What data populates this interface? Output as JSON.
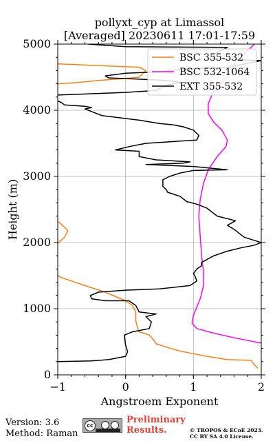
{
  "chart_data": {
    "type": "line",
    "title": "pollyxt_cyp at Limassol",
    "subtitle": "[Averaged] 20230611 17:01-17:59",
    "xlabel": "Angstroem Exponent",
    "ylabel": "Height (m)",
    "xlim": [
      -1,
      2
    ],
    "ylim": [
      0,
      5000
    ],
    "xticks": [
      "−1",
      "0",
      "1",
      "2"
    ],
    "yticks": [
      "0",
      "1000",
      "2000",
      "3000",
      "4000",
      "5000"
    ],
    "grid": true,
    "legend_position": "top-right",
    "series": [
      {
        "name": "BSC 355-532",
        "color": "#ff7f0e",
        "points": [
          [
            1.95,
            100
          ],
          [
            1.9,
            150
          ],
          [
            1.85,
            220
          ],
          [
            1.5,
            230
          ],
          [
            1.2,
            280
          ],
          [
            1.0,
            320
          ],
          [
            0.8,
            360
          ],
          [
            0.6,
            420
          ],
          [
            0.45,
            470
          ],
          [
            0.42,
            520
          ],
          [
            0.35,
            600
          ],
          [
            0.3,
            620
          ],
          [
            0.2,
            650
          ],
          [
            0.18,
            700
          ],
          [
            0.15,
            820
          ],
          [
            0.15,
            950
          ],
          [
            0.1,
            1050
          ],
          [
            0.0,
            1120
          ],
          [
            -0.3,
            1250
          ],
          [
            -0.6,
            1350
          ],
          [
            -0.8,
            1420
          ],
          [
            -0.97,
            1480
          ],
          [
            -1.0,
            1510
          ],
          [
            null,
            null
          ],
          [
            -1.0,
            1990
          ],
          [
            -0.9,
            2080
          ],
          [
            -0.85,
            2180
          ],
          [
            -0.95,
            2280
          ],
          [
            -1.0,
            2320
          ],
          [
            null,
            null
          ],
          [
            -1.0,
            4400
          ],
          [
            -0.7,
            4420
          ],
          [
            -0.4,
            4450
          ],
          [
            0.0,
            4480
          ],
          [
            0.2,
            4500
          ],
          [
            0.3,
            4600
          ],
          [
            0.2,
            4650
          ],
          [
            -0.5,
            4680
          ],
          [
            -1.0,
            4700
          ]
        ]
      },
      {
        "name": "BSC 532-1064",
        "color": "#ff00ff",
        "points": [
          [
            2.0,
            480
          ],
          [
            1.6,
            560
          ],
          [
            1.3,
            630
          ],
          [
            1.05,
            700
          ],
          [
            0.98,
            780
          ],
          [
            1.0,
            900
          ],
          [
            1.1,
            1150
          ],
          [
            1.15,
            1350
          ],
          [
            1.15,
            1550
          ],
          [
            1.12,
            1800
          ],
          [
            1.1,
            2100
          ],
          [
            1.08,
            2400
          ],
          [
            1.1,
            2650
          ],
          [
            1.15,
            2900
          ],
          [
            1.22,
            3100
          ],
          [
            1.35,
            3300
          ],
          [
            1.48,
            3450
          ],
          [
            1.5,
            3550
          ],
          [
            1.42,
            3700
          ],
          [
            1.3,
            3820
          ],
          [
            1.22,
            3950
          ],
          [
            1.22,
            4100
          ],
          [
            1.3,
            4300
          ],
          [
            1.45,
            4450
          ],
          [
            1.55,
            4580
          ],
          [
            1.6,
            4700
          ],
          [
            1.75,
            4850
          ],
          [
            1.85,
            4950
          ],
          [
            1.9,
            5000
          ]
        ]
      },
      {
        "name": "EXT 355-532",
        "color": "#000000",
        "points": [
          [
            -1.0,
            200
          ],
          [
            -0.5,
            210
          ],
          [
            -0.25,
            230
          ],
          [
            0.0,
            280
          ],
          [
            0.03,
            350
          ],
          [
            0.0,
            450
          ],
          [
            -0.02,
            600
          ],
          [
            0.1,
            650
          ],
          [
            0.35,
            700
          ],
          [
            0.38,
            800
          ],
          [
            0.3,
            880
          ],
          [
            0.45,
            920
          ],
          [
            0.2,
            950
          ],
          [
            0.15,
            1050
          ],
          [
            0.05,
            1120
          ],
          [
            -0.3,
            1120
          ],
          [
            -0.5,
            1150
          ],
          [
            -0.52,
            1200
          ],
          [
            -0.4,
            1250
          ],
          [
            0.0,
            1280
          ],
          [
            0.5,
            1300
          ],
          [
            0.95,
            1350
          ],
          [
            1.05,
            1420
          ],
          [
            1.02,
            1500
          ],
          [
            1.0,
            1530
          ],
          [
            1.05,
            1600
          ],
          [
            1.12,
            1650
          ],
          [
            1.12,
            1700
          ],
          [
            1.3,
            1800
          ],
          [
            1.5,
            1870
          ],
          [
            1.7,
            1920
          ],
          [
            1.9,
            1960
          ],
          [
            2.0,
            2000
          ],
          [
            1.75,
            2080
          ],
          [
            1.6,
            2200
          ],
          [
            1.5,
            2260
          ],
          [
            1.62,
            2330
          ],
          [
            1.35,
            2400
          ],
          [
            1.2,
            2520
          ],
          [
            1.05,
            2580
          ],
          [
            0.9,
            2620
          ],
          [
            0.8,
            2700
          ],
          [
            0.62,
            2760
          ],
          [
            0.6,
            2800
          ],
          [
            0.55,
            2850
          ],
          [
            0.55,
            2950
          ],
          [
            0.65,
            3000
          ],
          [
            0.8,
            3050
          ],
          [
            1.0,
            3090
          ],
          [
            1.5,
            3100
          ],
          [
            1.0,
            3150
          ],
          [
            0.3,
            3180
          ],
          [
            0.85,
            3200
          ],
          [
            0.95,
            3220
          ],
          [
            0.45,
            3250
          ],
          [
            0.2,
            3300
          ],
          [
            0.2,
            3380
          ],
          [
            -0.15,
            3400
          ],
          [
            0.05,
            3450
          ],
          [
            0.3,
            3500
          ],
          [
            0.6,
            3520
          ],
          [
            1.05,
            3550
          ],
          [
            1.08,
            3620
          ],
          [
            1.05,
            3650
          ],
          [
            1.0,
            3700
          ],
          [
            0.85,
            3750
          ],
          [
            0.7,
            3780
          ],
          [
            0.5,
            3800
          ],
          [
            0.2,
            3850
          ],
          [
            -0.35,
            3920
          ],
          [
            -0.5,
            3980
          ],
          [
            -0.6,
            4020
          ],
          [
            -0.5,
            4040
          ],
          [
            -0.6,
            4060
          ],
          [
            -0.9,
            4080
          ],
          [
            -0.95,
            4120
          ],
          [
            -1.0,
            4140
          ],
          [
            null,
            null
          ],
          [
            -1.0,
            4230
          ],
          [
            -0.5,
            4250
          ],
          [
            0.0,
            4270
          ],
          [
            0.45,
            4300
          ],
          [
            0.6,
            4380
          ],
          [
            0.8,
            4420
          ],
          [
            0.6,
            4450
          ],
          [
            0.2,
            4470
          ],
          [
            -0.25,
            4490
          ],
          [
            -0.3,
            4520
          ],
          [
            0.0,
            4560
          ],
          [
            0.5,
            4580
          ],
          [
            0.7,
            4600
          ],
          [
            0.8,
            4620
          ],
          [
            1.5,
            4650
          ],
          [
            2.0,
            4750
          ],
          [
            1.3,
            4780
          ],
          [
            1.3,
            4850
          ],
          [
            1.5,
            4950
          ],
          [
            0.0,
            4960
          ],
          [
            -0.55,
            5000
          ]
        ]
      }
    ]
  },
  "footer": {
    "version": "Version: 3.6",
    "method": "Method: Raman",
    "preliminary_line1": "Preliminary",
    "preliminary_line2": "Results.",
    "license_line1": "© TROPOS & ECoE 2023.",
    "license_line2": "CC BY SA 4.0 License.",
    "cc_badge_text": "cc"
  }
}
